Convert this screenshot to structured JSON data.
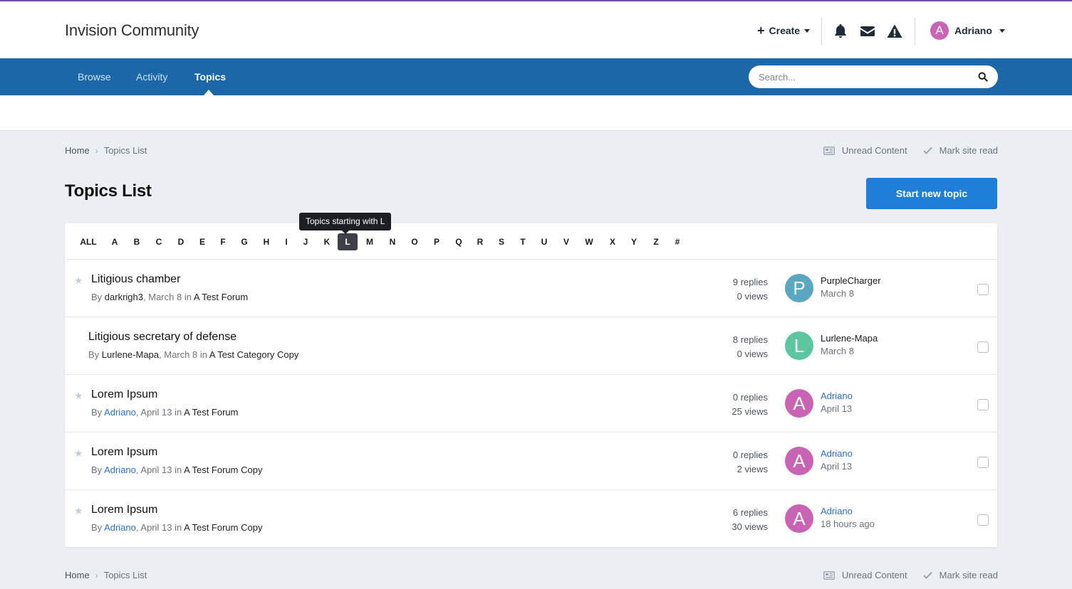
{
  "header": {
    "brand": "Invision Community",
    "create_label": "Create",
    "user_name": "Adriano",
    "user_initial": "A"
  },
  "nav": {
    "items": [
      {
        "label": "Browse"
      },
      {
        "label": "Activity"
      },
      {
        "label": "Topics"
      }
    ],
    "active": "Topics",
    "search_placeholder": "Search..."
  },
  "breadcrumb": {
    "home": "Home",
    "current": "Topics List",
    "unread_label": "Unread Content",
    "mark_read_label": "Mark site read"
  },
  "page": {
    "title": "Topics List",
    "start_button": "Start new topic"
  },
  "letters": [
    "ALL",
    "A",
    "B",
    "C",
    "D",
    "E",
    "F",
    "G",
    "H",
    "I",
    "J",
    "K",
    "L",
    "M",
    "N",
    "O",
    "P",
    "Q",
    "R",
    "S",
    "T",
    "U",
    "V",
    "W",
    "X",
    "Y",
    "Z",
    "#"
  ],
  "active_letter": "L",
  "tooltip": "Topics starting with L",
  "topics": [
    {
      "title": "Litigious chamber",
      "starred": true,
      "by": "By",
      "author": "darkrigh3",
      "author_link": false,
      "date": "March 8",
      "in": "in",
      "forum": "A Test Forum",
      "replies": "9 replies",
      "views": "0 views",
      "last_initial": "P",
      "last_color": "#5aa7c2",
      "last_user": "PurpleCharger",
      "last_user_link": false,
      "last_date": "March 8"
    },
    {
      "title": "Litigious secretary of defense",
      "starred": false,
      "by": "By",
      "author": "Lurlene-Mapa",
      "author_link": false,
      "date": "March 8",
      "in": "in",
      "forum": "A Test Category Copy",
      "replies": "8 replies",
      "views": "0 views",
      "last_initial": "L",
      "last_color": "#5cc6a0",
      "last_user": "Lurlene-Mapa",
      "last_user_link": false,
      "last_date": "March 8"
    },
    {
      "title": "Lorem Ipsum",
      "starred": true,
      "by": "By",
      "author": "Adriano",
      "author_link": true,
      "date": "April 13",
      "in": "in",
      "forum": "A Test Forum",
      "replies": "0 replies",
      "views": "25 views",
      "last_initial": "A",
      "last_color": "#c964b5",
      "last_user": "Adriano",
      "last_user_link": true,
      "last_date": "April 13"
    },
    {
      "title": "Lorem Ipsum",
      "starred": true,
      "by": "By",
      "author": "Adriano",
      "author_link": true,
      "date": "April 13",
      "in": "in",
      "forum": "A Test Forum Copy",
      "replies": "0 replies",
      "views": "2 views",
      "last_initial": "A",
      "last_color": "#c964b5",
      "last_user": "Adriano",
      "last_user_link": true,
      "last_date": "April 13"
    },
    {
      "title": "Lorem Ipsum",
      "starred": true,
      "by": "By",
      "author": "Adriano",
      "author_link": true,
      "date": "April 13",
      "in": "in",
      "forum": "A Test Forum Copy",
      "replies": "6 replies",
      "views": "30 views",
      "last_initial": "A",
      "last_color": "#c964b5",
      "last_user": "Adriano",
      "last_user_link": true,
      "last_date": "18 hours ago"
    }
  ],
  "colors": {
    "nav_bg": "#1b67a8",
    "accent_button": "#1f7ed6",
    "top_line": "#6a4fa3",
    "link": "#2a6fc9"
  }
}
